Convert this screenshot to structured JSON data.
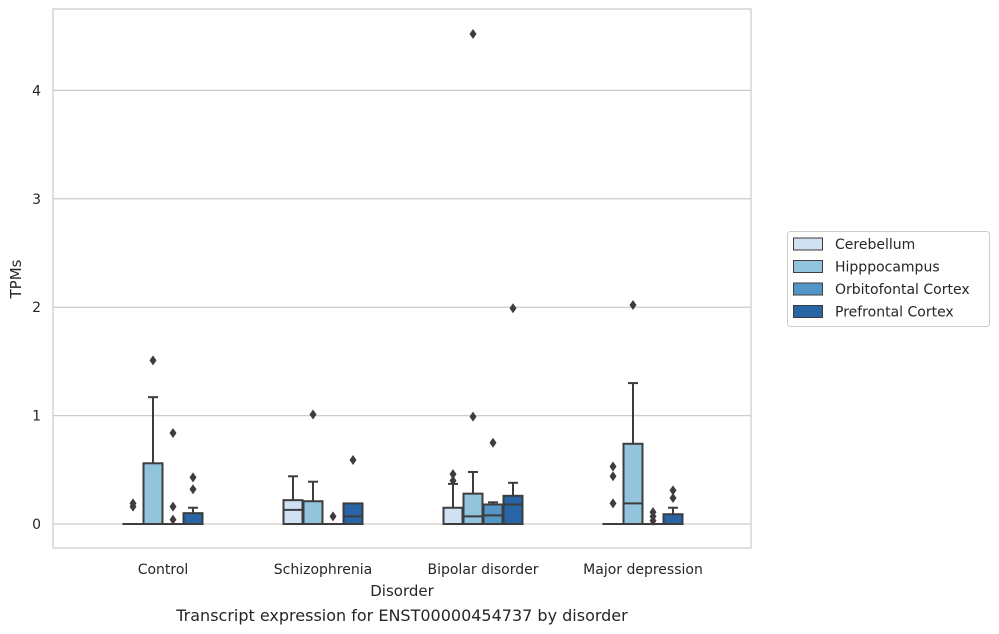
{
  "chart_data": {
    "type": "box",
    "xlabel": "Disorder",
    "ylabel": "TPMs",
    "caption": "Transcript expression for ENST00000454737 by disorder",
    "categories": [
      "Control",
      "Schizophrenia",
      "Bipolar disorder",
      "Major depression"
    ],
    "y_ticks": [
      "0",
      "1",
      "2",
      "3",
      "4"
    ],
    "ylim": [
      -0.22,
      4.75
    ],
    "grid": "horizontal",
    "legend_position": "center-right",
    "series": [
      {
        "name": "Cerebellum",
        "color": "#cfe1f2",
        "boxes": [
          {
            "min": 0,
            "q1": 0,
            "median": 0,
            "q3": 0,
            "max": 0,
            "outliers": [
              0.16,
              0.19
            ]
          },
          {
            "min": 0,
            "q1": 0,
            "median": 0.13,
            "q3": 0.22,
            "max": 0.44,
            "outliers": []
          },
          {
            "min": 0,
            "q1": 0,
            "median": 0,
            "q3": 0.15,
            "max": 0.37,
            "outliers": [
              0.4,
              0.46
            ]
          },
          {
            "min": 0,
            "q1": 0,
            "median": 0,
            "q3": 0,
            "max": 0,
            "outliers": [
              0.19,
              0.44,
              0.53
            ]
          }
        ]
      },
      {
        "name": "Hipppocampus",
        "color": "#93c4de",
        "boxes": [
          {
            "min": 0,
            "q1": 0,
            "median": 0,
            "q3": 0.56,
            "max": 1.17,
            "outliers": [
              1.51
            ]
          },
          {
            "min": 0,
            "q1": 0,
            "median": 0,
            "q3": 0.21,
            "max": 0.39,
            "outliers": [
              1.01
            ]
          },
          {
            "min": 0,
            "q1": 0,
            "median": 0.07,
            "q3": 0.28,
            "max": 0.48,
            "outliers": [
              0.99,
              4.52
            ]
          },
          {
            "min": 0,
            "q1": 0,
            "median": 0.19,
            "q3": 0.74,
            "max": 1.3,
            "outliers": [
              2.02
            ]
          }
        ]
      },
      {
        "name": "Orbitofontal Cortex",
        "color": "#5496c8",
        "boxes": [
          {
            "min": 0,
            "q1": 0,
            "median": 0,
            "q3": 0,
            "max": 0,
            "outliers": [
              0.04,
              0.16,
              0.84
            ]
          },
          {
            "min": 0,
            "q1": 0,
            "median": 0,
            "q3": 0,
            "max": 0,
            "outliers": [
              0.07
            ]
          },
          {
            "min": 0,
            "q1": 0,
            "median": 0.08,
            "q3": 0.18,
            "max": 0.2,
            "outliers": [
              0.75
            ]
          },
          {
            "min": 0,
            "q1": 0,
            "median": 0,
            "q3": 0,
            "max": 0,
            "outliers": [
              0.03,
              0.07,
              0.11
            ]
          }
        ]
      },
      {
        "name": "Prefrontal Cortex",
        "color": "#2765a6",
        "boxes": [
          {
            "min": 0,
            "q1": 0,
            "median": 0,
            "q3": 0.1,
            "max": 0.15,
            "outliers": [
              0.32,
              0.43
            ]
          },
          {
            "min": 0,
            "q1": 0,
            "median": 0.07,
            "q3": 0.19,
            "max": 0.19,
            "outliers": [
              0.59
            ]
          },
          {
            "min": 0,
            "q1": 0,
            "median": 0.18,
            "q3": 0.26,
            "max": 0.38,
            "outliers": [
              1.99
            ]
          },
          {
            "min": 0,
            "q1": 0,
            "median": 0,
            "q3": 0.09,
            "max": 0.15,
            "outliers": [
              0.24,
              0.31
            ]
          }
        ]
      }
    ]
  }
}
